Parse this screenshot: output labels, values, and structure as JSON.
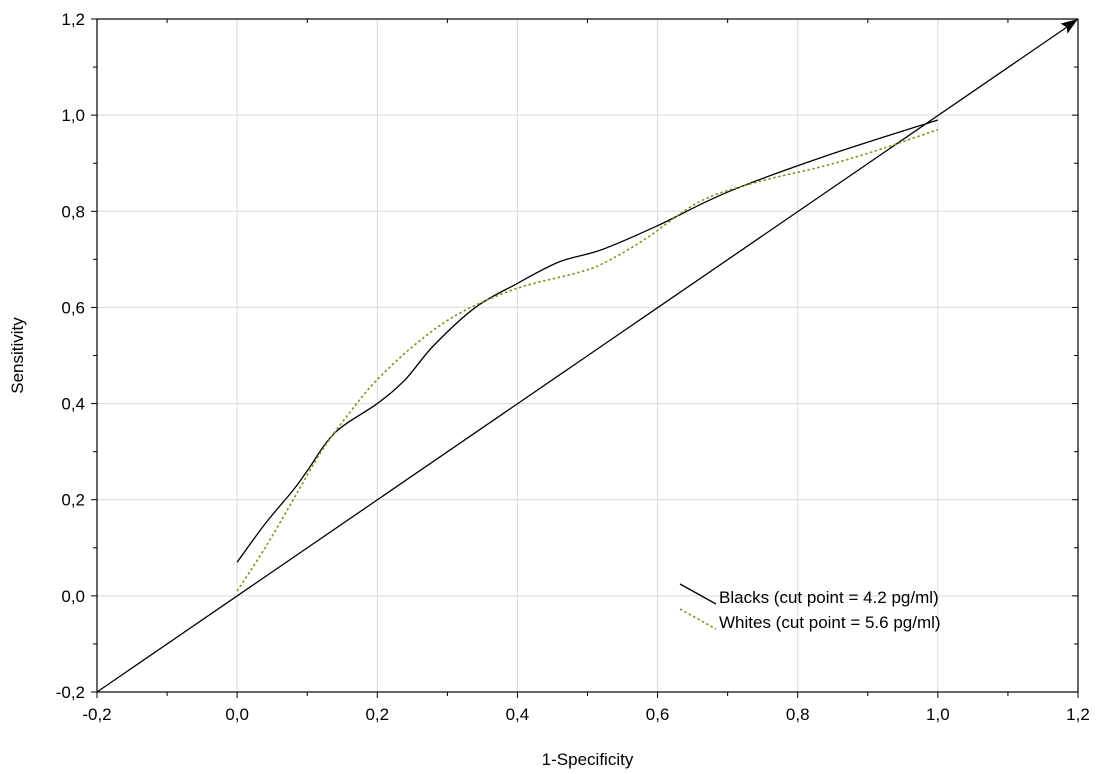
{
  "chart_data": {
    "type": "line",
    "xlabel": "1-Specificity",
    "ylabel": "Sensitivity",
    "xlim": [
      -0.2,
      1.2
    ],
    "ylim": [
      -0.2,
      1.2
    ],
    "grid": true,
    "legend_position": "bottom-right",
    "x_ticks": [
      "-0,2",
      "0,0",
      "0,2",
      "0,4",
      "0,6",
      "0,8",
      "1,0",
      "1,2"
    ],
    "y_ticks": [
      "-0,2",
      "0,0",
      "0,2",
      "0,4",
      "0,6",
      "0,8",
      "1,0",
      "1,2"
    ],
    "reference_line": {
      "x": [
        -0.2,
        1.2
      ],
      "y": [
        -0.2,
        1.2
      ],
      "color": "#000000",
      "arrow": true
    },
    "series": [
      {
        "name": "Blacks (cut point = 4.2 pg/ml)",
        "color": "#000000",
        "style": "solid",
        "x": [
          0.0,
          0.04,
          0.08,
          0.1,
          0.14,
          0.2,
          0.24,
          0.28,
          0.34,
          0.4,
          0.46,
          0.52,
          0.6,
          0.7,
          0.84,
          1.0
        ],
        "y": [
          0.07,
          0.15,
          0.22,
          0.26,
          0.34,
          0.4,
          0.45,
          0.52,
          0.6,
          0.65,
          0.695,
          0.72,
          0.77,
          0.84,
          0.915,
          0.99
        ]
      },
      {
        "name": "Whites (cut point = 5.6 pg/ml)",
        "color": "#8c8c1e",
        "style": "dotted",
        "x": [
          0.0,
          0.04,
          0.08,
          0.12,
          0.16,
          0.2,
          0.26,
          0.32,
          0.4,
          0.48,
          0.52,
          0.58,
          0.66,
          0.74,
          0.84,
          0.92,
          1.0
        ],
        "y": [
          0.01,
          0.1,
          0.2,
          0.3,
          0.38,
          0.45,
          0.53,
          0.59,
          0.64,
          0.67,
          0.69,
          0.74,
          0.82,
          0.86,
          0.895,
          0.93,
          0.97
        ]
      }
    ]
  }
}
